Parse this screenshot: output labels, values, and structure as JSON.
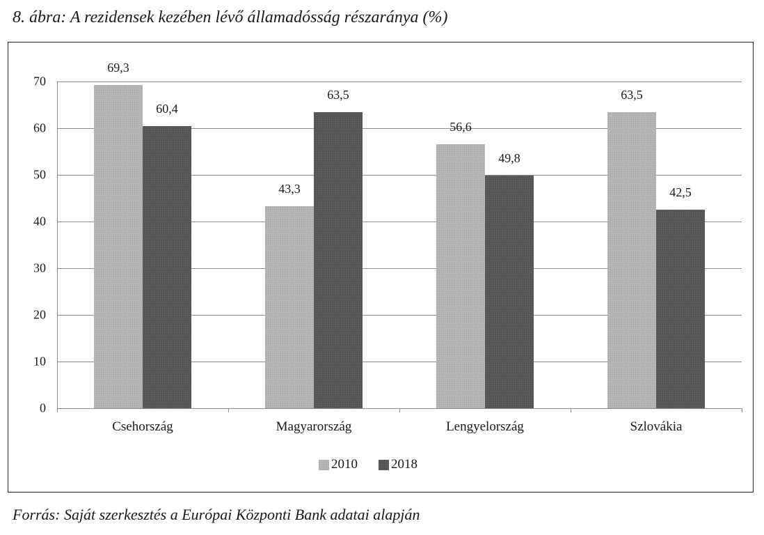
{
  "figure": {
    "title": "8. ábra: A rezidensek kezében lévő államadósság részaránya (%)",
    "source": "Forrás: Saját szerkesztés a Európai Központi Bank adatai alapján"
  },
  "chart_data": {
    "type": "bar",
    "title": "8. ábra: A rezidensek kezében lévő államadósság részaránya (%)",
    "xlabel": "",
    "ylabel": "",
    "categories": [
      "Csehország",
      "Magyarország",
      "Lengyelország",
      "Szlovákia"
    ],
    "series": [
      {
        "name": "2010",
        "values": [
          69.3,
          43.3,
          56.6,
          63.5
        ],
        "labels": [
          "69,3",
          "43,3",
          "56,6",
          "63,5"
        ],
        "color": "#b6b6b6"
      },
      {
        "name": "2018",
        "values": [
          60.4,
          63.5,
          49.8,
          42.5
        ],
        "labels": [
          "60,4",
          "63,5",
          "49,8",
          "42,5"
        ],
        "color": "#555555"
      }
    ],
    "ylim": [
      0,
      70
    ],
    "yticks": [
      "0",
      "10",
      "20",
      "30",
      "40",
      "50",
      "60",
      "70"
    ],
    "grid": true,
    "legend_position": "bottom",
    "source": "Forrás: Saját szerkesztés a Európai Központi Bank adatai alapján"
  }
}
